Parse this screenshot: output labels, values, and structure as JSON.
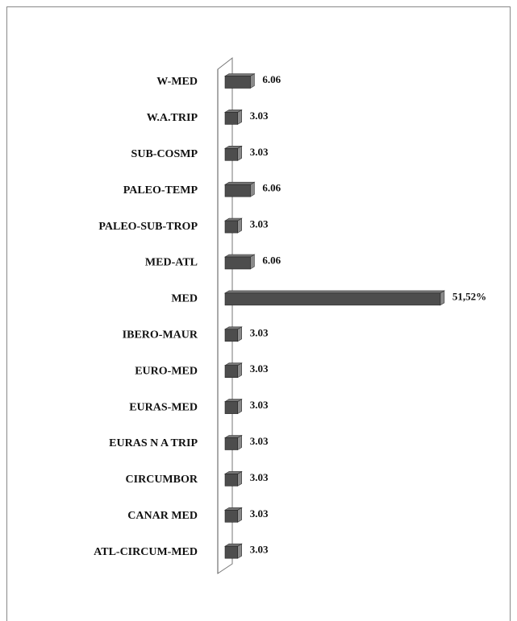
{
  "chart_data": {
    "type": "bar",
    "orientation": "horizontal",
    "categories": [
      "W-MED",
      "W.A.TRIP",
      "SUB-COSMP",
      "PALEO-TEMP",
      "PALEO-SUB-TROP",
      "MED-ATL",
      "MED",
      "IBERO-MAUR",
      "EURO-MED",
      "EURAS-MED",
      "EURAS N A TRIP",
      "CIRCUMBOR",
      "CANAR MED",
      "ATL-CIRCUM-MED"
    ],
    "values": [
      6.06,
      3.03,
      3.03,
      6.06,
      3.03,
      6.06,
      51.52,
      3.03,
      3.03,
      3.03,
      3.03,
      3.03,
      3.03,
      3.03
    ],
    "value_labels": [
      "6.06",
      "3.03",
      "3.03",
      "6.06",
      "3.03",
      "6.06",
      "51,52%",
      "3.03",
      "3.03",
      "3.03",
      "3.03",
      "3.03",
      "3.03",
      "3.03"
    ],
    "color": "#4d4d4d"
  }
}
